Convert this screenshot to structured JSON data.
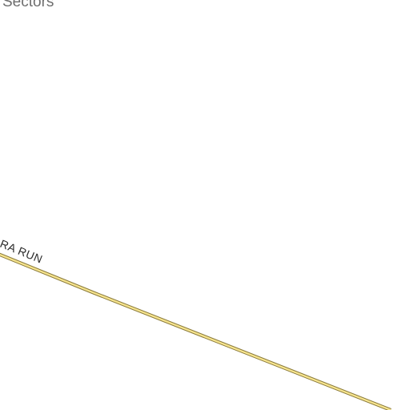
{
  "map": {
    "area_label": "Sectors",
    "road": {
      "name": "RA RUN",
      "fill_color": "#f7e58f",
      "casing_color": "#8a7a3a"
    },
    "background_color": "#ffffff"
  }
}
